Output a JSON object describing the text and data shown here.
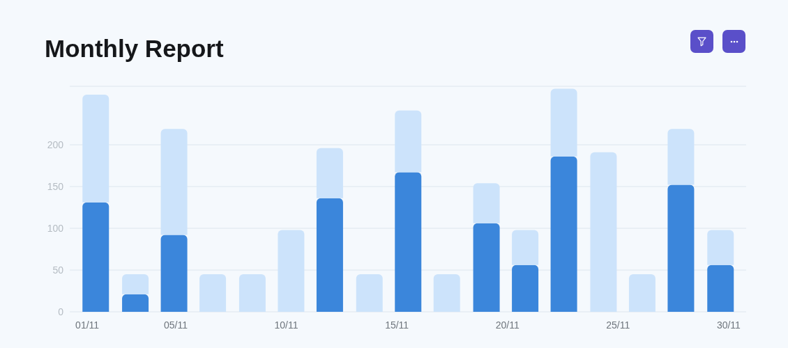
{
  "chart_data": {
    "type": "bar",
    "title": "Monthly Report",
    "x": [
      "--11-01T09:00",
      "--11-03T04:00",
      "--11-04T22:00",
      "--11-06T16:00",
      "--11-08T11:00",
      "--11-10T05:00",
      "--11-11T23:00",
      "--11-13T18:00",
      "--11-15T12:00",
      "--11-17T06:00",
      "--11-19T01:00",
      "--11-20T19:00",
      "--11-22T13:00",
      "--11-24T08:00",
      "--11-26T02:00",
      "--11-27T20:00",
      "--11-29T15:00"
    ],
    "xlim": [
      "--10-31T05:00",
      "--11-30T19:00"
    ],
    "xticks": [
      {
        "value": "--11-01",
        "label": "01/11"
      },
      {
        "value": "--11-05",
        "label": "05/11"
      },
      {
        "value": "--11-10",
        "label": "10/11"
      },
      {
        "value": "--11-15",
        "label": "15/11"
      },
      {
        "value": "--11-20",
        "label": "20/11"
      },
      {
        "value": "--11-25",
        "label": "25/11"
      },
      {
        "value": "--11-30",
        "label": "30/11"
      }
    ],
    "ylim": [
      0,
      270
    ],
    "yticks": [
      0,
      50,
      100,
      150,
      200
    ],
    "grid": "y",
    "stacked": true,
    "series": [
      {
        "color": "#3b86db",
        "values": [
          131,
          21,
          92,
          null,
          null,
          null,
          136,
          null,
          167,
          null,
          106,
          56,
          186,
          null,
          null,
          152,
          56
        ]
      },
      {
        "color": "#cce3fb",
        "values": [
          129,
          24,
          127,
          45,
          45,
          98,
          60,
          45,
          74,
          45,
          48,
          42,
          81,
          191,
          45,
          67,
          42
        ]
      }
    ]
  }
}
